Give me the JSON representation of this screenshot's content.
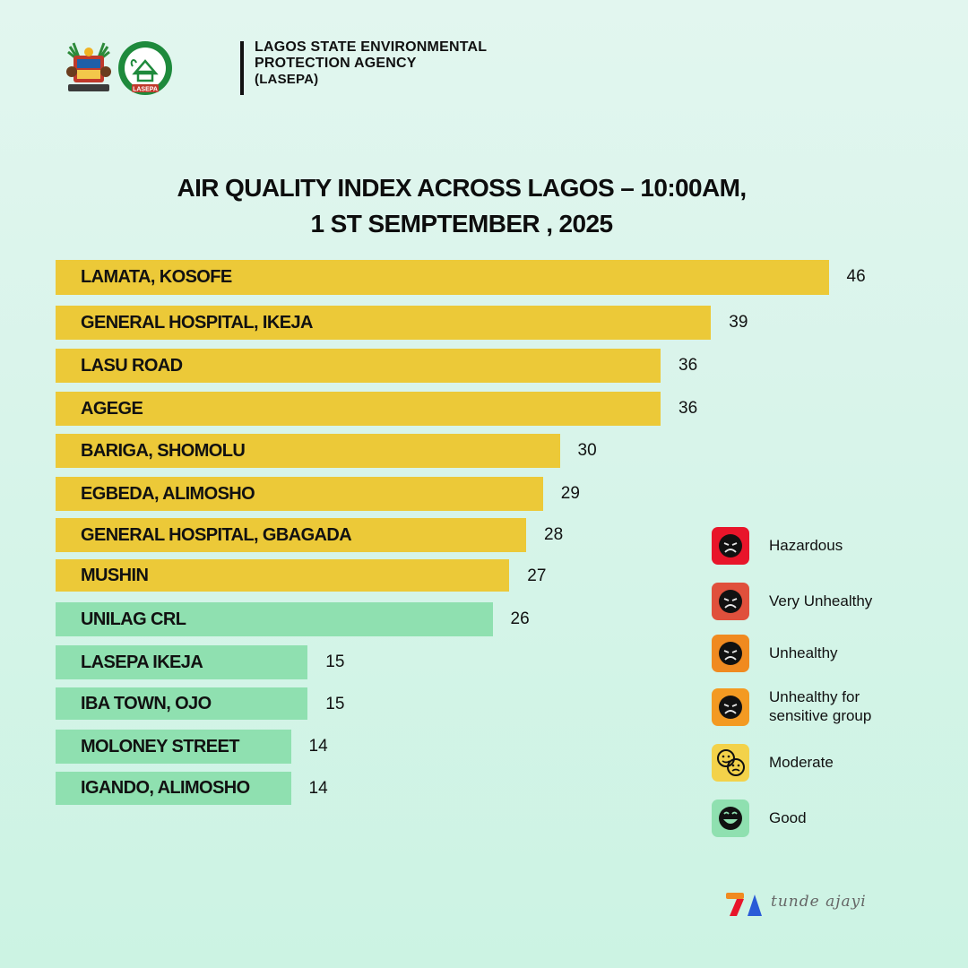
{
  "header": {
    "agency_line1": "LAGOS STATE ENVIRONMENTAL",
    "agency_line2": "PROTECTION AGENCY",
    "agency_line3": "(LASEPA)",
    "seal_text": "LASEPA"
  },
  "chart_data": {
    "type": "bar",
    "orientation": "horizontal",
    "title_line1": "AIR QUALITY INDEX ACROSS LAGOS – 10:00AM,",
    "title_line2": "1 ST SEMPTEMBER , 2025",
    "categories": [
      "LAMATA, KOSOFE",
      "GENERAL HOSPITAL, IKEJA",
      "LASU ROAD",
      "AGEGE",
      "BARIGA, SHOMOLU",
      "EGBEDA, ALIMOSHO",
      "GENERAL HOSPITAL, GBAGADA",
      "MUSHIN",
      "UNILAG CRL",
      "LASEPA IKEJA",
      "IBA TOWN, OJO",
      "MOLONEY STREET",
      "IGANDO, ALIMOSHO"
    ],
    "values": [
      46,
      39,
      36,
      36,
      30,
      29,
      28,
      27,
      26,
      15,
      15,
      14,
      14
    ],
    "bar_colors": [
      "#ecc938",
      "#ecc938",
      "#ecc938",
      "#ecc938",
      "#ecc938",
      "#ecc938",
      "#ecc938",
      "#ecc938",
      "#8fe0b0",
      "#8fe0b0",
      "#8fe0b0",
      "#8fe0b0",
      "#8fe0b0"
    ],
    "legend_position": "right",
    "grid": false
  },
  "legend": [
    {
      "label": "Hazardous",
      "color": "#e8152a",
      "icon": "frown-face-icon"
    },
    {
      "label": "Very Unhealthy",
      "color": "#e0503c",
      "icon": "frown-face-icon"
    },
    {
      "label": "Unhealthy",
      "color": "#f08a20",
      "icon": "frown-face-icon"
    },
    {
      "label": "Unhealthy for sensitive group",
      "color": "#f39a22",
      "icon": "frown-face-icon"
    },
    {
      "label": "Moderate",
      "color": "#f3d24a",
      "icon": "mixed-faces-icon"
    },
    {
      "label": "Good",
      "color": "#8fe0b0",
      "icon": "laughing-face-icon"
    }
  ],
  "watermark": {
    "text": "tunde ajayi"
  }
}
